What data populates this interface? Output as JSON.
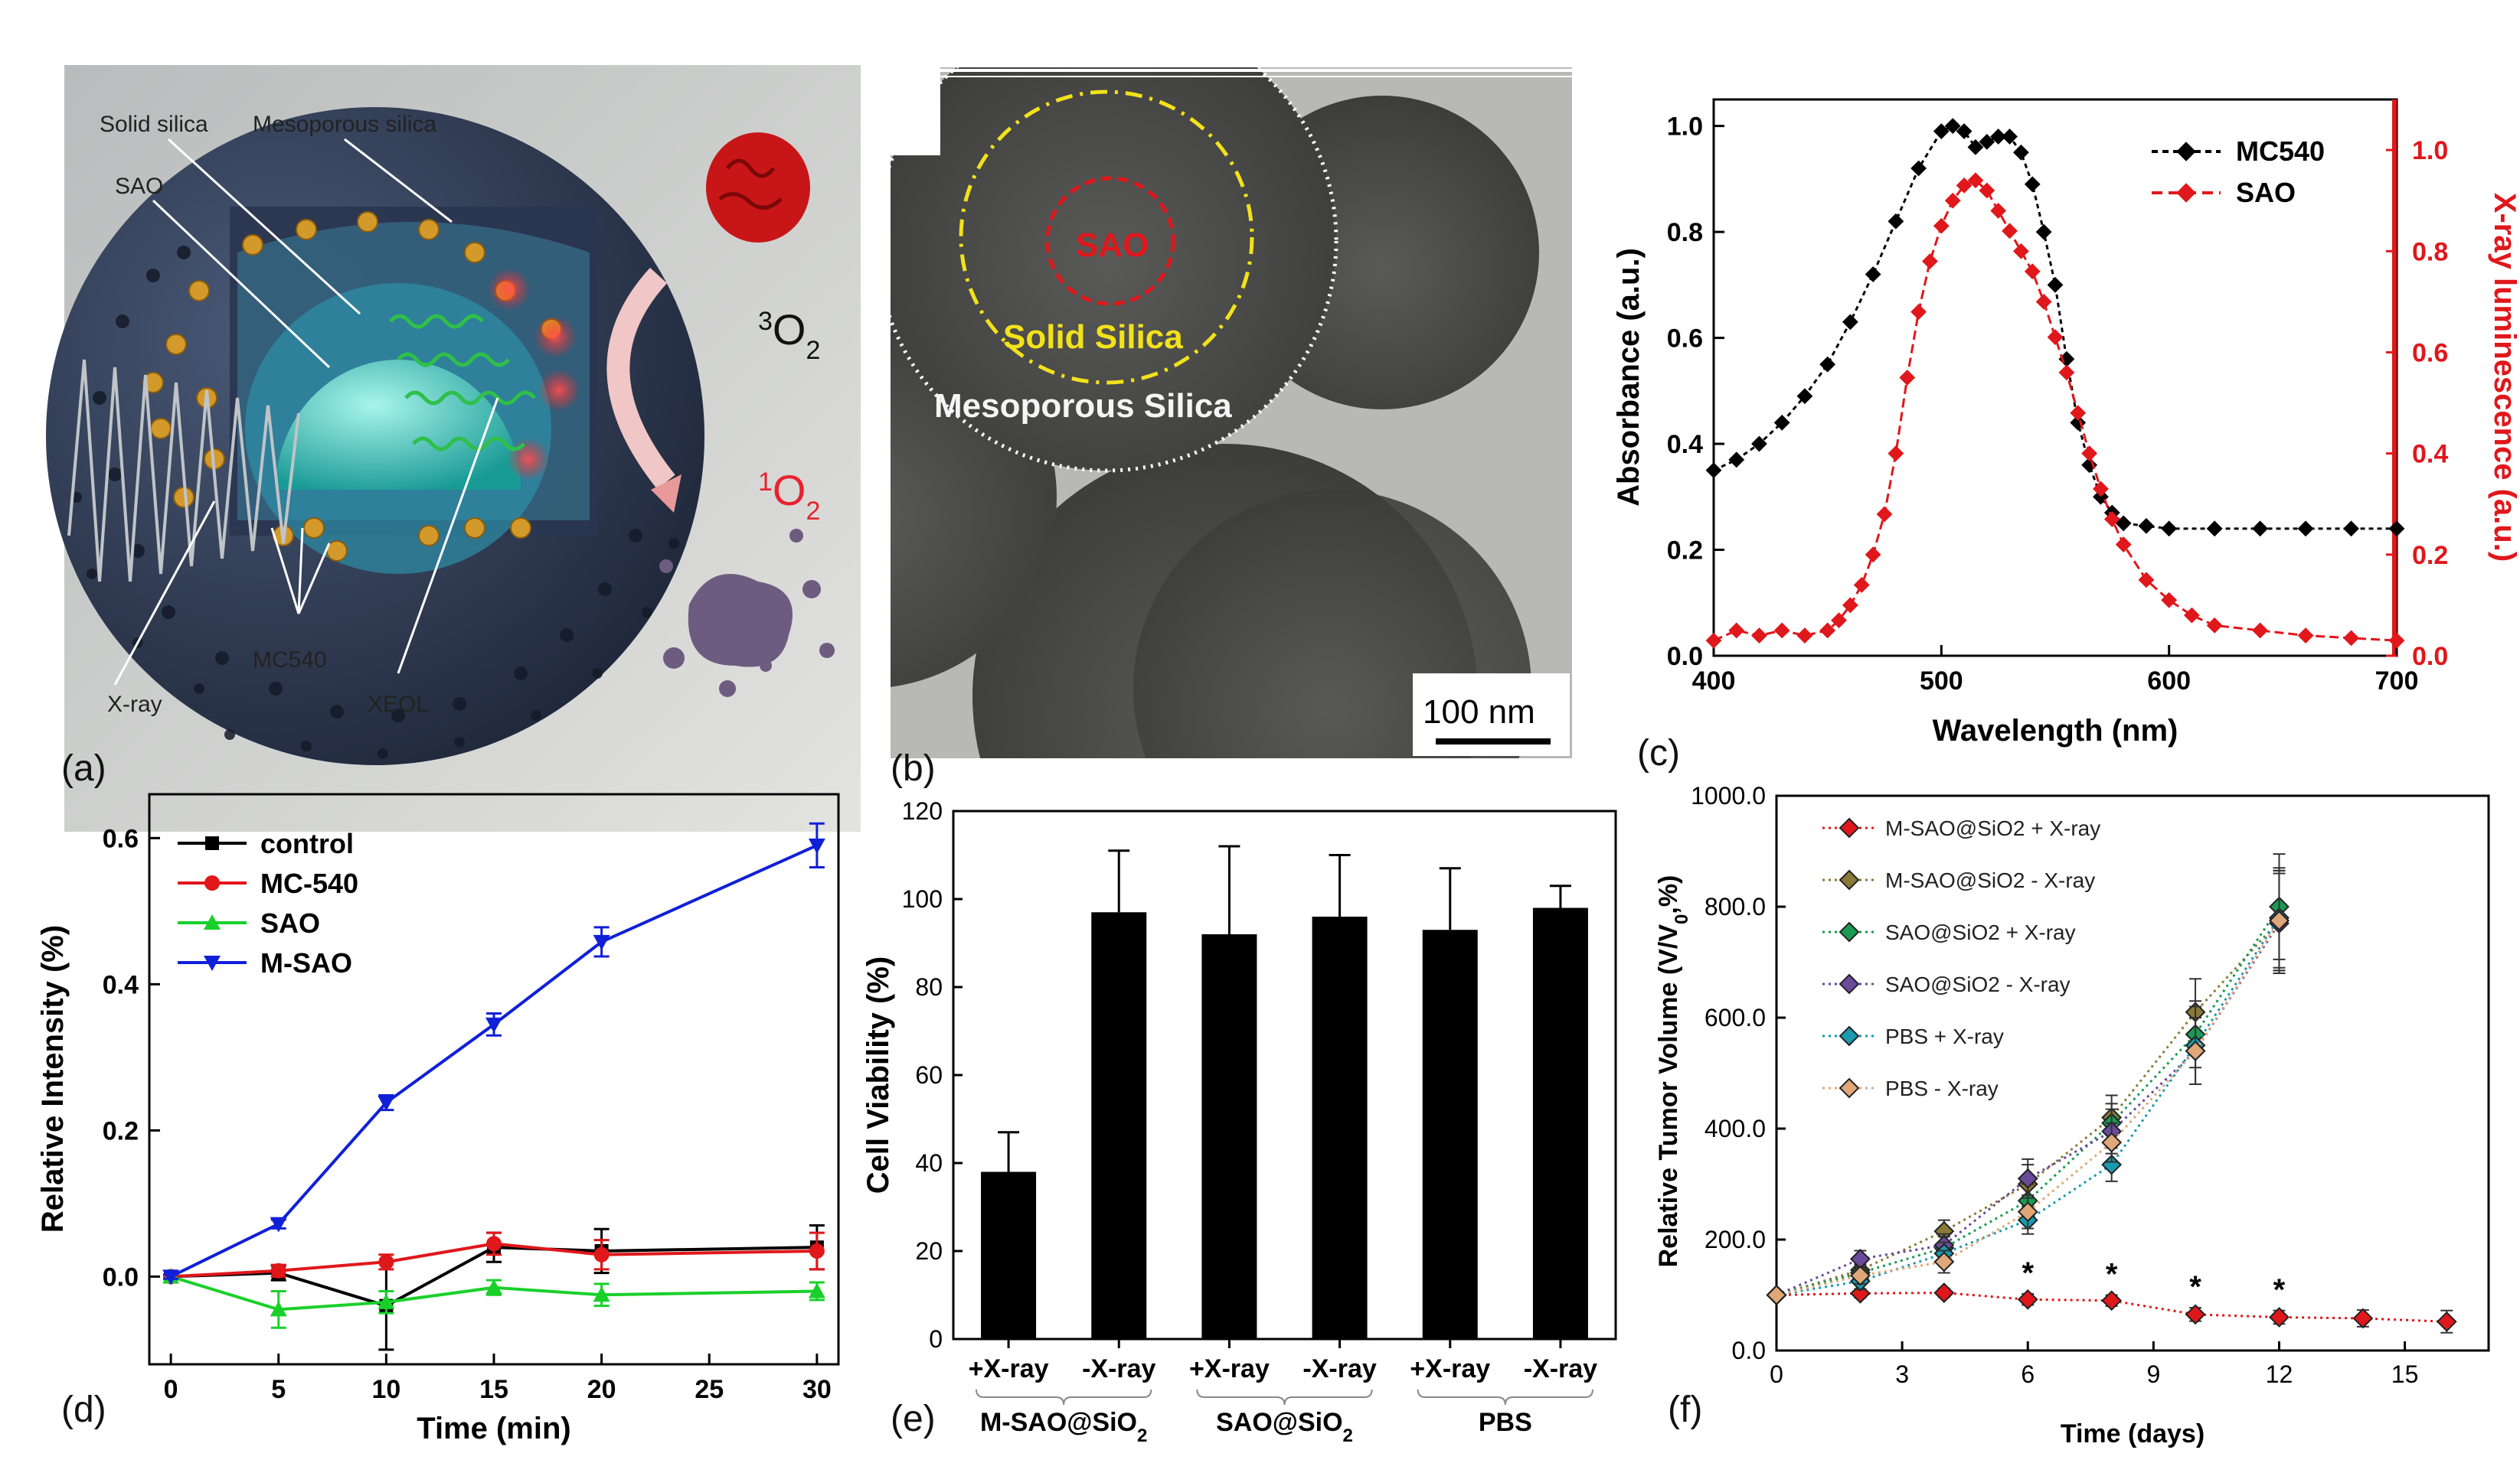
{
  "panel_labels": {
    "a": "(a)",
    "b": "(b)",
    "c": "(c)",
    "d": "(d)",
    "e": "(e)",
    "f": "(f)"
  },
  "panel_a": {
    "labels": {
      "solid_silica": "Solid silica",
      "mesoporous_silica": "Mesoporous silica",
      "sao": "SAO",
      "mc540": "MC540",
      "xray": "X-ray",
      "xeol": "XEOL"
    },
    "o2_triplet": {
      "sup": "3",
      "main": "O",
      "sub": "2"
    },
    "o2_singlet": {
      "sup": "1",
      "main": "O",
      "sub": "2"
    },
    "colors": {
      "shell": "#3b4660",
      "core": "#3cc6bf",
      "particle": "#d39a2b",
      "glow": "#e0202e",
      "tumor_red": "#c81518",
      "debris": "#6e5c80",
      "wave": "#2fbf4a"
    }
  },
  "panel_b": {
    "labels": {
      "sao": "SAO",
      "solid_silica": "Solid Silica",
      "mesoporous_silica": "Mesoporous Silica"
    },
    "scale_bar": "100 nm",
    "colors": {
      "sao_ring": "#e0171b",
      "solid_ring": "#f2e21a"
    }
  },
  "chart_data": [
    {
      "panel": "c",
      "type": "line",
      "xlabel": "Wavelength (nm)",
      "ylabel": "Absorbance (a.u.)",
      "y2label": "X-ray luminescence (a.u.)",
      "xlim": [
        400,
        700
      ],
      "ylim": [
        0,
        1.05
      ],
      "y2lim": [
        0,
        1.1
      ],
      "xticks": [
        "400",
        "500",
        "600",
        "700"
      ],
      "yticks": [
        "0.0",
        "0.2",
        "0.4",
        "0.6",
        "0.8",
        "1.0"
      ],
      "y2ticks": [
        "0.0",
        "0.2",
        "0.4",
        "0.6",
        "0.8",
        "1.0"
      ],
      "series": [
        {
          "name": "MC540",
          "color": "#000000",
          "axis": "left",
          "x": [
            400,
            410,
            420,
            430,
            440,
            450,
            460,
            470,
            480,
            490,
            500,
            505,
            510,
            515,
            520,
            525,
            530,
            535,
            540,
            545,
            550,
            555,
            560,
            565,
            570,
            575,
            580,
            590,
            600,
            620,
            640,
            660,
            680,
            700
          ],
          "y": [
            0.35,
            0.37,
            0.4,
            0.44,
            0.49,
            0.55,
            0.63,
            0.72,
            0.82,
            0.92,
            0.99,
            1.0,
            0.99,
            0.96,
            0.97,
            0.98,
            0.98,
            0.95,
            0.89,
            0.8,
            0.7,
            0.56,
            0.44,
            0.36,
            0.3,
            0.27,
            0.25,
            0.245,
            0.24,
            0.24,
            0.24,
            0.24,
            0.24,
            0.24
          ]
        },
        {
          "name": "SAO",
          "color": "#e0171b",
          "axis": "right",
          "x": [
            400,
            410,
            420,
            430,
            440,
            450,
            455,
            460,
            465,
            470,
            475,
            480,
            485,
            490,
            495,
            500,
            505,
            510,
            515,
            520,
            525,
            530,
            535,
            540,
            545,
            550,
            555,
            560,
            565,
            570,
            575,
            580,
            590,
            600,
            610,
            620,
            640,
            660,
            680,
            700
          ],
          "y": [
            0.03,
            0.05,
            0.04,
            0.05,
            0.04,
            0.05,
            0.07,
            0.1,
            0.14,
            0.2,
            0.28,
            0.4,
            0.55,
            0.68,
            0.78,
            0.85,
            0.9,
            0.93,
            0.94,
            0.92,
            0.88,
            0.84,
            0.8,
            0.76,
            0.7,
            0.63,
            0.56,
            0.48,
            0.4,
            0.33,
            0.27,
            0.22,
            0.15,
            0.11,
            0.08,
            0.06,
            0.05,
            0.04,
            0.035,
            0.03
          ]
        }
      ]
    },
    {
      "panel": "d",
      "type": "line",
      "xlabel": "Time (min)",
      "ylabel": "Relative Intensity (%)",
      "xlim": [
        -1,
        31
      ],
      "ylim": [
        -0.12,
        0.66
      ],
      "xticks": [
        "0",
        "5",
        "10",
        "15",
        "20",
        "25",
        "30"
      ],
      "yticks": [
        "0.0",
        "0.2",
        "0.4",
        "0.6"
      ],
      "x": [
        0,
        5,
        10,
        15,
        20,
        30
      ],
      "series": [
        {
          "name": "control",
          "color": "#000000",
          "marker": "square",
          "values": [
            0,
            0.005,
            -0.04,
            0.04,
            0.035,
            0.04
          ],
          "err": [
            0.003,
            0.01,
            0.06,
            0.02,
            0.03,
            0.03
          ]
        },
        {
          "name": "MC-540",
          "color": "#e0171b",
          "marker": "circle",
          "values": [
            0,
            0.008,
            0.02,
            0.045,
            0.03,
            0.035
          ],
          "err": [
            0.003,
            0.008,
            0.01,
            0.015,
            0.02,
            0.025
          ]
        },
        {
          "name": "SAO",
          "color": "#19d02a",
          "marker": "triangle-up",
          "values": [
            0,
            -0.045,
            -0.035,
            -0.015,
            -0.025,
            -0.02
          ],
          "err": [
            0.003,
            0.025,
            0.015,
            0.01,
            0.015,
            0.012
          ]
        },
        {
          "name": "M-SAO",
          "color": "#1020d8",
          "marker": "triangle-down",
          "values": [
            0,
            0.072,
            0.238,
            0.345,
            0.458,
            0.59
          ],
          "err": [
            0.003,
            0.006,
            0.01,
            0.015,
            0.02,
            0.03
          ]
        }
      ]
    },
    {
      "panel": "e",
      "type": "bar",
      "ylabel": "Cell Viability (%)",
      "ylim": [
        0,
        120
      ],
      "yticks": [
        "0",
        "20",
        "40",
        "60",
        "80",
        "100",
        "120"
      ],
      "categories": [
        "+X-ray",
        "-X-ray",
        "+X-ray",
        "-X-ray",
        "+X-ray",
        "-X-ray"
      ],
      "groups": [
        {
          "label_main": "M-SAO@SiO",
          "label_sub": "2"
        },
        {
          "label_main": "SAO@SiO",
          "label_sub": "2"
        },
        {
          "label_main": "PBS",
          "label_sub": ""
        }
      ],
      "values": [
        38,
        97,
        92,
        96,
        93,
        98
      ],
      "err": [
        9,
        14,
        20,
        14,
        14,
        5
      ],
      "color": "#000000"
    },
    {
      "panel": "f",
      "type": "line",
      "xlabel": "Time (days)",
      "ylabel_main": "Relative Tumor Volume (V/V",
      "ylabel_sub": "0",
      "ylabel_tail": ",%)",
      "xlim": [
        0,
        17
      ],
      "ylim": [
        0,
        1000
      ],
      "xticks": [
        "0",
        "3",
        "6",
        "9",
        "12",
        "15"
      ],
      "yticks": [
        "0.0",
        "200.0",
        "400.0",
        "600.0",
        "800.0",
        "1000.0"
      ],
      "significance_marker": "*",
      "significance_days": [
        6,
        8,
        10,
        12
      ],
      "series": [
        {
          "name": "M-SAO@SiO2 + X-ray",
          "color": "#e0171b",
          "x": [
            0,
            2,
            4,
            6,
            8,
            10,
            12,
            14,
            16
          ],
          "values": [
            100,
            103,
            104,
            92,
            90,
            65,
            60,
            58,
            52
          ],
          "err": [
            5,
            8,
            8,
            10,
            10,
            12,
            12,
            15,
            20
          ]
        },
        {
          "name": "M-SAO@SiO2 - X-ray",
          "color": "#8a7a38",
          "x": [
            0,
            2,
            4,
            6,
            8,
            10,
            12
          ],
          "values": [
            100,
            145,
            215,
            300,
            420,
            610,
            775
          ],
          "err": [
            5,
            15,
            20,
            35,
            40,
            60,
            90
          ]
        },
        {
          "name": "SAO@SiO2 + X-ray",
          "color": "#1a9a52",
          "x": [
            0,
            2,
            4,
            6,
            8,
            10,
            12
          ],
          "values": [
            100,
            140,
            185,
            270,
            410,
            570,
            800
          ],
          "err": [
            5,
            15,
            20,
            30,
            35,
            60,
            95
          ]
        },
        {
          "name": "SAO@SiO2 - X-ray",
          "color": "#6a4a9a",
          "x": [
            0,
            2,
            4,
            6,
            8,
            10,
            12
          ],
          "values": [
            100,
            165,
            190,
            310,
            395,
            540,
            770
          ],
          "err": [
            5,
            15,
            20,
            35,
            40,
            60,
            90
          ]
        },
        {
          "name": "PBS + X-ray",
          "color": "#1a9ab0",
          "x": [
            0,
            2,
            4,
            6,
            8,
            10,
            12
          ],
          "values": [
            100,
            125,
            175,
            235,
            335,
            550,
            780
          ],
          "err": [
            5,
            15,
            20,
            25,
            30,
            70,
            90
          ]
        },
        {
          "name": "PBS - X-ray",
          "color": "#e0a878",
          "x": [
            0,
            2,
            4,
            6,
            8,
            10,
            12
          ],
          "values": [
            100,
            135,
            160,
            250,
            375,
            540,
            775
          ],
          "err": [
            5,
            15,
            20,
            30,
            35,
            60,
            90
          ]
        }
      ]
    }
  ]
}
